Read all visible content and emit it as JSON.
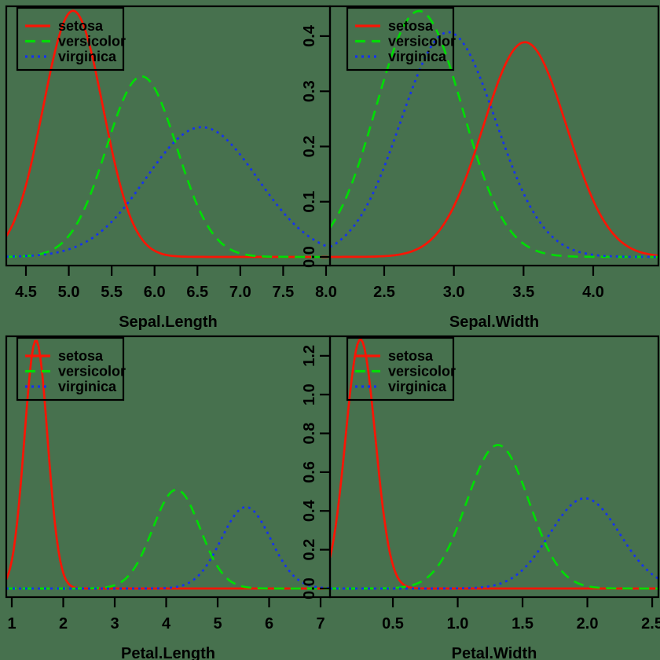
{
  "figure": {
    "background_color": "#47714e",
    "foreground_color": "#000000",
    "series_colors": {
      "setosa": "#fa1505",
      "versicolor": "#00dc05",
      "virginica": "#1532f0"
    },
    "legend": {
      "position": "topleft",
      "items": [
        {
          "label": "setosa",
          "linetype": "solid"
        },
        {
          "label": "versicolor",
          "linetype": "dashed"
        },
        {
          "label": "virginica",
          "linetype": "dotted"
        }
      ]
    }
  },
  "chart_data": [
    {
      "id": "sepal-length",
      "type": "line",
      "subtype": "density",
      "xlabel": "Sepal.Length",
      "ylabel": "",
      "xlim": [
        4.271,
        8.046
      ],
      "ylim": [
        -0.0157,
        0.454
      ],
      "x_ticks": [
        4.5,
        5.0,
        5.5,
        6.0,
        6.5,
        7.0,
        7.5,
        8.0
      ],
      "x_tick_labels": [
        "4.5",
        "5.0",
        "5.5",
        "6.0",
        "6.5",
        "7.0",
        "7.5",
        "8.0"
      ],
      "y_ticks": [
        0.0,
        0.1,
        0.2,
        0.3,
        0.4
      ],
      "y_tick_labels": [
        "0.0",
        "0.1",
        "0.2",
        "0.3",
        "0.4"
      ],
      "y_axis_shown": false,
      "grid": false,
      "series": [
        {
          "name": "setosa",
          "linetype": "solid",
          "mean": 5.05,
          "sd": 0.35,
          "peak": 0.446
        },
        {
          "name": "versicolor",
          "linetype": "dashed",
          "mean": 5.85,
          "sd": 0.41,
          "peak": 0.327
        },
        {
          "name": "virginica",
          "linetype": "dotted",
          "mean": 6.55,
          "sd": 0.65,
          "peak": 0.235
        }
      ]
    },
    {
      "id": "sepal-width",
      "type": "line",
      "subtype": "density",
      "xlabel": "Sepal.Width",
      "ylabel": "",
      "xlim": [
        2.111,
        4.468
      ],
      "ylim": [
        -0.0157,
        0.454
      ],
      "x_ticks": [
        2.5,
        3.0,
        3.5,
        4.0
      ],
      "x_tick_labels": [
        "2.5",
        "3.0",
        "3.5",
        "4.0"
      ],
      "y_ticks": [
        0.0,
        0.1,
        0.2,
        0.3,
        0.4
      ],
      "y_tick_labels": [
        "0.0",
        "0.1",
        "0.2",
        "0.3",
        "0.4"
      ],
      "y_axis_shown": true,
      "grid": false,
      "series": [
        {
          "name": "setosa",
          "linetype": "solid",
          "mean": 3.51,
          "sd": 0.3,
          "peak": 0.389
        },
        {
          "name": "versicolor",
          "linetype": "dashed",
          "mean": 2.75,
          "sd": 0.31,
          "peak": 0.4455
        },
        {
          "name": "virginica",
          "linetype": "dotted",
          "mean": 2.96,
          "sd": 0.34,
          "peak": 0.407
        }
      ]
    },
    {
      "id": "petal-length",
      "type": "line",
      "subtype": "density",
      "xlabel": "Petal.Length",
      "ylabel": "",
      "xlim": [
        0.893,
        7.183
      ],
      "ylim": [
        -0.0447,
        1.3007
      ],
      "x_ticks": [
        1,
        2,
        3,
        4,
        5,
        6,
        7
      ],
      "x_tick_labels": [
        "1",
        "2",
        "3",
        "4",
        "5",
        "6",
        "7"
      ],
      "y_ticks": [
        0.0,
        0.2,
        0.4,
        0.6,
        0.8,
        1.0,
        1.2
      ],
      "y_tick_labels": [
        "0.0",
        "0.2",
        "0.4",
        "0.6",
        "0.8",
        "1.0",
        "1.2"
      ],
      "y_axis_shown": false,
      "grid": false,
      "series": [
        {
          "name": "setosa",
          "linetype": "solid",
          "mean": 1.47,
          "sd": 0.225,
          "peak": 1.28
        },
        {
          "name": "versicolor",
          "linetype": "dashed",
          "mean": 4.2,
          "sd": 0.46,
          "peak": 0.51
        },
        {
          "name": "virginica",
          "linetype": "dotted",
          "mean": 5.55,
          "sd": 0.48,
          "peak": 0.42
        }
      ]
    },
    {
      "id": "petal-width",
      "type": "line",
      "subtype": "density",
      "xlabel": "Petal.Width",
      "ylabel": "",
      "xlim": [
        0.015,
        2.548
      ],
      "ylim": [
        -0.0447,
        1.3007
      ],
      "x_ticks": [
        0.5,
        1.0,
        1.5,
        2.0,
        2.5
      ],
      "x_tick_labels": [
        "0.5",
        "1.0",
        "1.5",
        "2.0",
        "2.5"
      ],
      "y_ticks": [
        0.0,
        0.2,
        0.4,
        0.6,
        0.8,
        1.0,
        1.2
      ],
      "y_tick_labels": [
        "0.0",
        "0.2",
        "0.4",
        "0.6",
        "0.8",
        "1.0",
        "1.2"
      ],
      "y_axis_shown": true,
      "grid": false,
      "series": [
        {
          "name": "setosa",
          "linetype": "solid",
          "mean": 0.25,
          "sd": 0.115,
          "peak": 1.285
        },
        {
          "name": "versicolor",
          "linetype": "dashed",
          "mean": 1.31,
          "sd": 0.24,
          "peak": 0.74
        },
        {
          "name": "virginica",
          "linetype": "dotted",
          "mean": 1.98,
          "sd": 0.27,
          "peak": 0.465
        }
      ]
    }
  ]
}
